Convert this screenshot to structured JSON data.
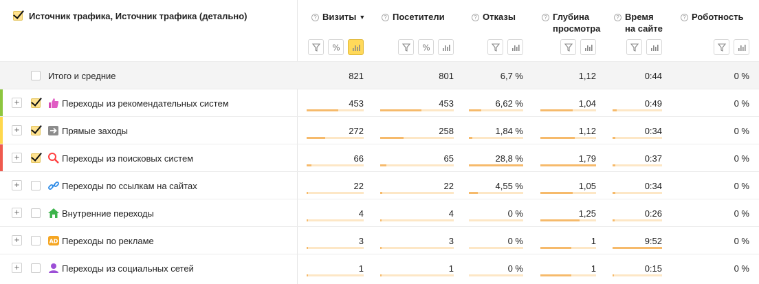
{
  "header": {
    "dimension_title": "Источник трафика, Источник трафика (детально)",
    "columns": [
      {
        "key": "visits",
        "line1": "Визиты",
        "line2": "",
        "sort_indicator": "▼",
        "buttons": [
          "filter",
          "percent",
          "chart"
        ],
        "active_chart": true
      },
      {
        "key": "visitors",
        "line1": "Посетители",
        "line2": "",
        "sort_indicator": "",
        "buttons": [
          "filter",
          "percent",
          "chart"
        ],
        "active_chart": false
      },
      {
        "key": "bounce",
        "line1": "Отказы",
        "line2": "",
        "sort_indicator": "",
        "buttons": [
          "filter",
          "chart"
        ],
        "active_chart": false
      },
      {
        "key": "depth",
        "line1": "Глубина",
        "line2": "просмотра",
        "sort_indicator": "",
        "buttons": [
          "filter",
          "chart"
        ],
        "active_chart": false
      },
      {
        "key": "time",
        "line1": "Время",
        "line2": "на сайте",
        "sort_indicator": "",
        "buttons": [
          "filter",
          "chart"
        ],
        "active_chart": false
      },
      {
        "key": "robot",
        "line1": "Роботность",
        "line2": "",
        "sort_indicator": "",
        "buttons": [
          "filter",
          "chart"
        ],
        "active_chart": false
      }
    ]
  },
  "total_row": {
    "label": "Итого и средние",
    "values": {
      "visits": "821",
      "visitors": "801",
      "bounce": "6,7 %",
      "depth": "1,12",
      "time": "0:44",
      "robot": "0 %"
    }
  },
  "rows": [
    {
      "label": "Переходы из рекомендательных систем",
      "icon": "thumbs-up-icon",
      "checked": true,
      "strip_color": "#8dc63f",
      "values": {
        "visits": "453",
        "visitors": "453",
        "bounce": "6,62 %",
        "depth": "1,04",
        "time": "0:49",
        "robot": "0 %"
      },
      "bars": {
        "visits": 0.552,
        "visitors": 0.565,
        "bounce": 0.23,
        "depth": 0.58,
        "time": 0.08,
        "robot": 0
      }
    },
    {
      "label": "Прямые заходы",
      "icon": "arrow-right-icon",
      "checked": true,
      "strip_color": "#ffd84d",
      "values": {
        "visits": "272",
        "visitors": "258",
        "bounce": "1,84 %",
        "depth": "1,12",
        "time": "0:34",
        "robot": "0 %"
      },
      "bars": {
        "visits": 0.331,
        "visitors": 0.322,
        "bounce": 0.06,
        "depth": 0.62,
        "time": 0.06,
        "robot": 0
      }
    },
    {
      "label": "Переходы из поисковых систем",
      "icon": "search-icon",
      "checked": true,
      "strip_color": "#ef5a4e",
      "values": {
        "visits": "66",
        "visitors": "65",
        "bounce": "28,8 %",
        "depth": "1,79",
        "time": "0:37",
        "robot": "0 %"
      },
      "bars": {
        "visits": 0.08,
        "visitors": 0.081,
        "bounce": 1.0,
        "depth": 1.0,
        "time": 0.06,
        "robot": 0
      }
    },
    {
      "label": "Переходы по ссылкам на сайтах",
      "icon": "link-icon",
      "checked": false,
      "strip_color": "",
      "values": {
        "visits": "22",
        "visitors": "22",
        "bounce": "4,55 %",
        "depth": "1,05",
        "time": "0:34",
        "robot": "0 %"
      },
      "bars": {
        "visits": 0.027,
        "visitors": 0.027,
        "bounce": 0.16,
        "depth": 0.58,
        "time": 0.06,
        "robot": 0
      }
    },
    {
      "label": "Внутренние переходы",
      "icon": "home-icon",
      "checked": false,
      "strip_color": "",
      "values": {
        "visits": "4",
        "visitors": "4",
        "bounce": "0 %",
        "depth": "1,25",
        "time": "0:26",
        "robot": "0 %"
      },
      "bars": {
        "visits": 0.005,
        "visitors": 0.005,
        "bounce": 0,
        "depth": 0.7,
        "time": 0.045,
        "robot": 0
      }
    },
    {
      "label": "Переходы по рекламе",
      "icon": "ad-icon",
      "checked": false,
      "strip_color": "",
      "values": {
        "visits": "3",
        "visitors": "3",
        "bounce": "0 %",
        "depth": "1",
        "time": "9:52",
        "robot": "0 %"
      },
      "bars": {
        "visits": 0.004,
        "visitors": 0.004,
        "bounce": 0,
        "depth": 0.56,
        "time": 1.0,
        "robot": 0
      }
    },
    {
      "label": "Переходы из социальных сетей",
      "icon": "user-icon",
      "checked": false,
      "strip_color": "",
      "values": {
        "visits": "1",
        "visitors": "1",
        "bounce": "0 %",
        "depth": "1",
        "time": "0:15",
        "robot": "0 %"
      },
      "bars": {
        "visits": 0.001,
        "visitors": 0.001,
        "bounce": 0,
        "depth": 0.56,
        "time": 0.025,
        "robot": 0
      }
    }
  ]
}
